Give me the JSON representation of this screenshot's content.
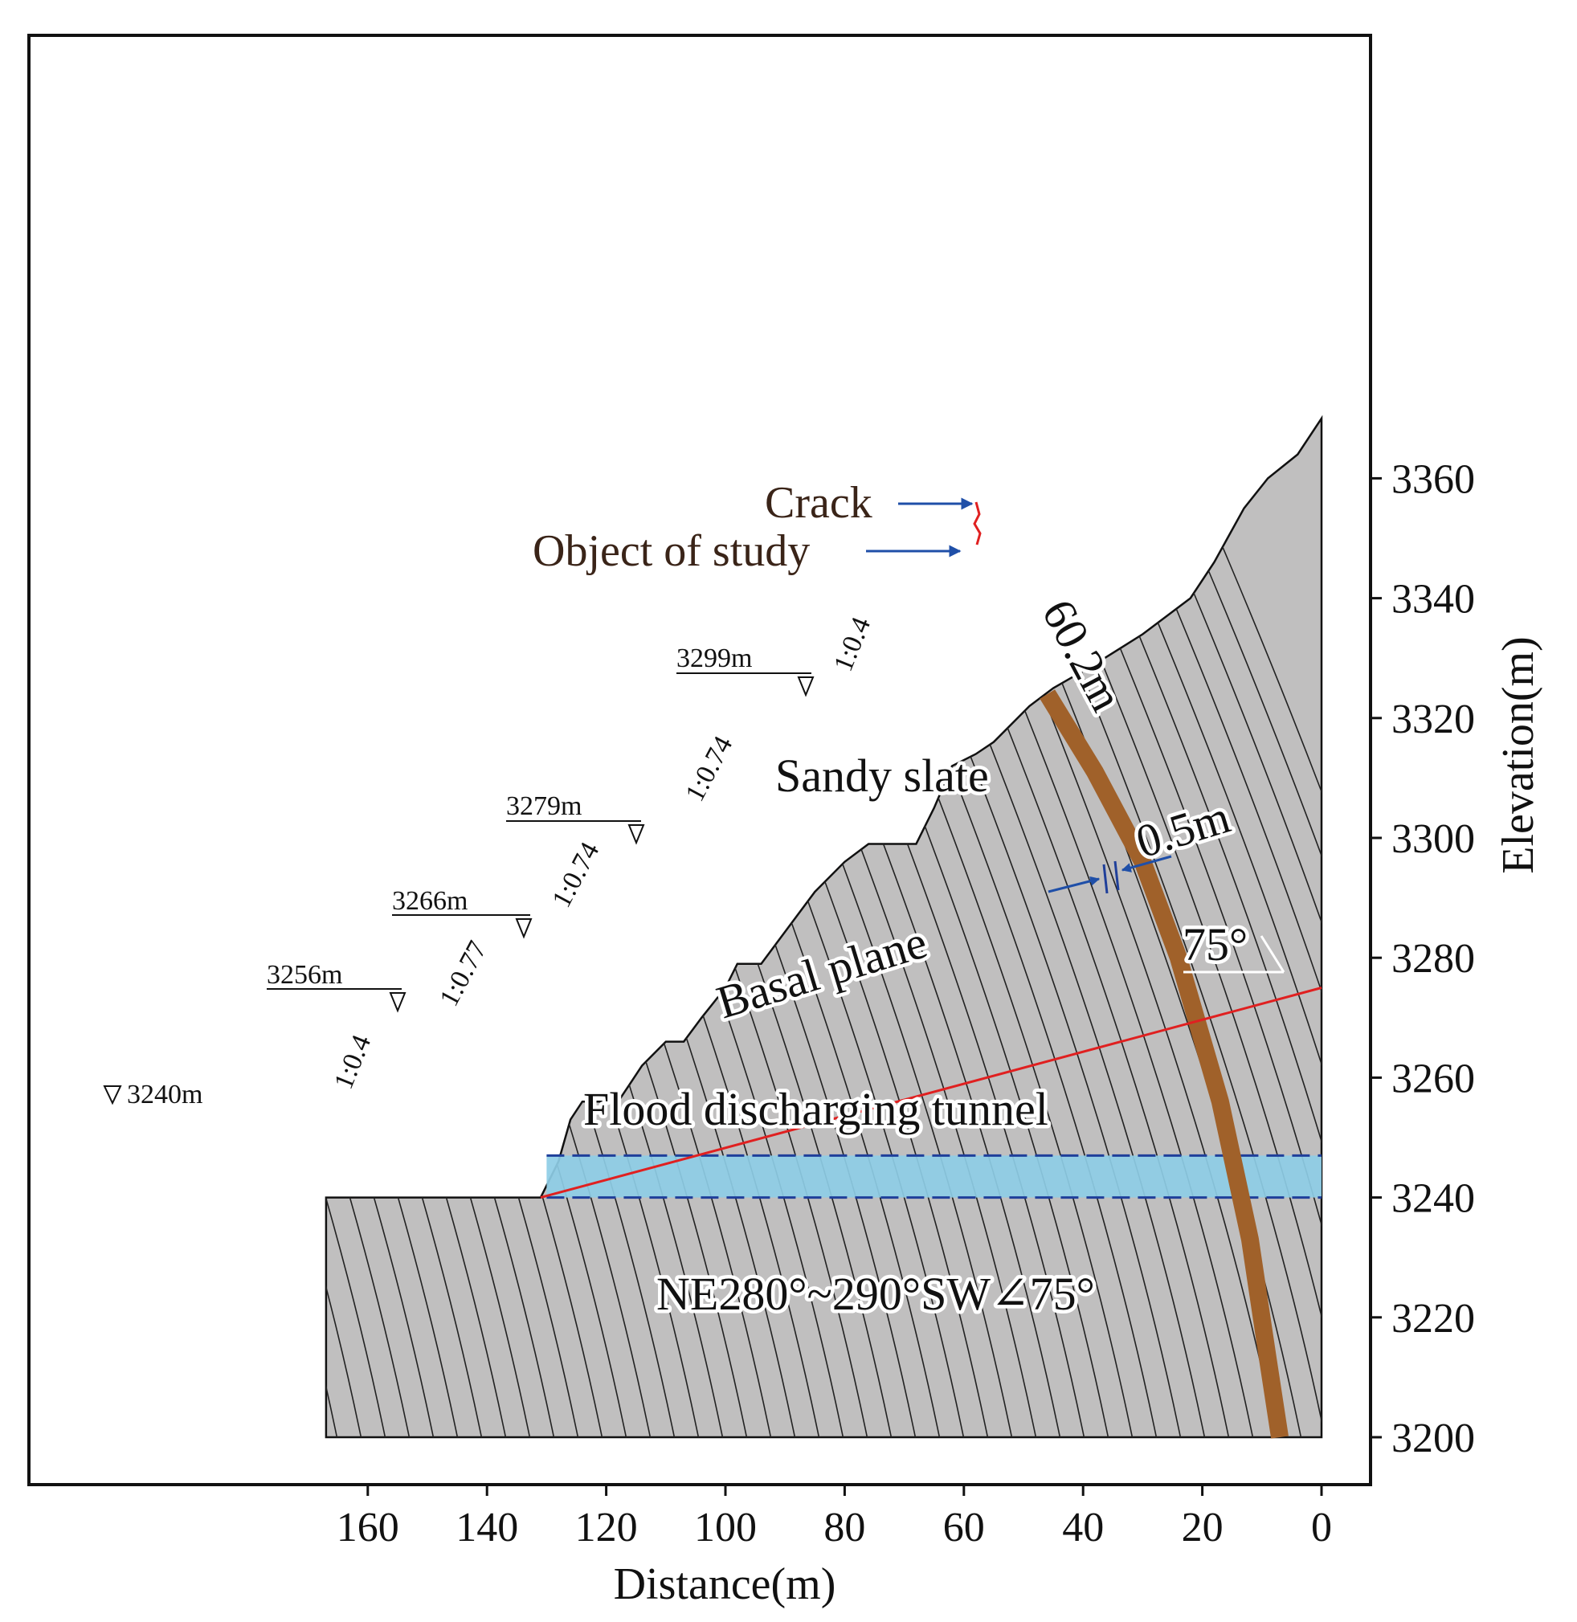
{
  "x_axis": {
    "title": "Distance(m)",
    "ticks": [
      "160",
      "140",
      "120",
      "100",
      "80",
      "60",
      "40",
      "20",
      "0"
    ],
    "range": [
      174,
      -6
    ]
  },
  "y_axis": {
    "title": "Elevation(m)",
    "ticks": [
      "3360",
      "3340",
      "3320",
      "3300",
      "3280",
      "3260",
      "3240",
      "3220",
      "3200"
    ],
    "range": [
      3196,
      3382
    ]
  },
  "labels": {
    "crack": "Crack",
    "object": "Object of study",
    "sandy_slate": "Sandy slate",
    "basal_plane": "Basal plane",
    "tunnel": "Flood discharging tunnel",
    "attitude": "NE280°~290°SW∠75°",
    "length": "60.2m",
    "thickness": "0.5m",
    "dip_angle": "75°"
  },
  "elevations": [
    "3240m",
    "3256m",
    "3266m",
    "3279m",
    "3299m"
  ],
  "slope_ratios": [
    "1:0.4",
    "1:0.77",
    "1:0.74",
    "1:0.74",
    "1:0.4"
  ],
  "colors": {
    "rock": "#c0bfbf",
    "layer": "#a0612a",
    "tunnel": "#8ecde6",
    "tunnel_border": "#1f3f9a",
    "basal": "#e02020",
    "arrow": "#1f4fa8",
    "crack": "#e02020"
  },
  "profile": [
    [
      167,
      3240
    ],
    [
      131,
      3240
    ],
    [
      128,
      3246
    ],
    [
      126,
      3253
    ],
    [
      124,
      3256
    ],
    [
      118,
      3256
    ],
    [
      116,
      3259
    ],
    [
      114,
      3262
    ],
    [
      110,
      3266
    ],
    [
      107,
      3266
    ],
    [
      104,
      3270
    ],
    [
      100,
      3275
    ],
    [
      98,
      3279
    ],
    [
      94,
      3279
    ],
    [
      91,
      3283
    ],
    [
      88,
      3287
    ],
    [
      85,
      3291
    ],
    [
      80,
      3296
    ],
    [
      76,
      3299
    ],
    [
      68,
      3299
    ],
    [
      65,
      3305
    ],
    [
      62,
      3312
    ],
    [
      58,
      3314
    ],
    [
      55,
      3316
    ],
    [
      52,
      3319
    ],
    [
      49,
      3322
    ],
    [
      45,
      3325
    ],
    [
      38,
      3329
    ],
    [
      30,
      3334
    ],
    [
      22,
      3340
    ],
    [
      18,
      3346
    ],
    [
      13,
      3355
    ],
    [
      9,
      3360
    ],
    [
      4,
      3364
    ],
    [
      0,
      3370
    ],
    [
      0,
      3200
    ],
    [
      167,
      3200
    ]
  ],
  "layer_path": [
    [
      46,
      3324
    ],
    [
      38,
      3311
    ],
    [
      30,
      3296
    ],
    [
      24,
      3280
    ],
    [
      17,
      3256
    ],
    [
      12,
      3233
    ],
    [
      9,
      3213
    ],
    [
      7,
      3200
    ]
  ],
  "basal_line": [
    [
      131,
      3240
    ],
    [
      0,
      3275
    ]
  ],
  "tunnel_band": {
    "x": [
      130,
      0
    ],
    "y": [
      3240,
      3247
    ]
  }
}
